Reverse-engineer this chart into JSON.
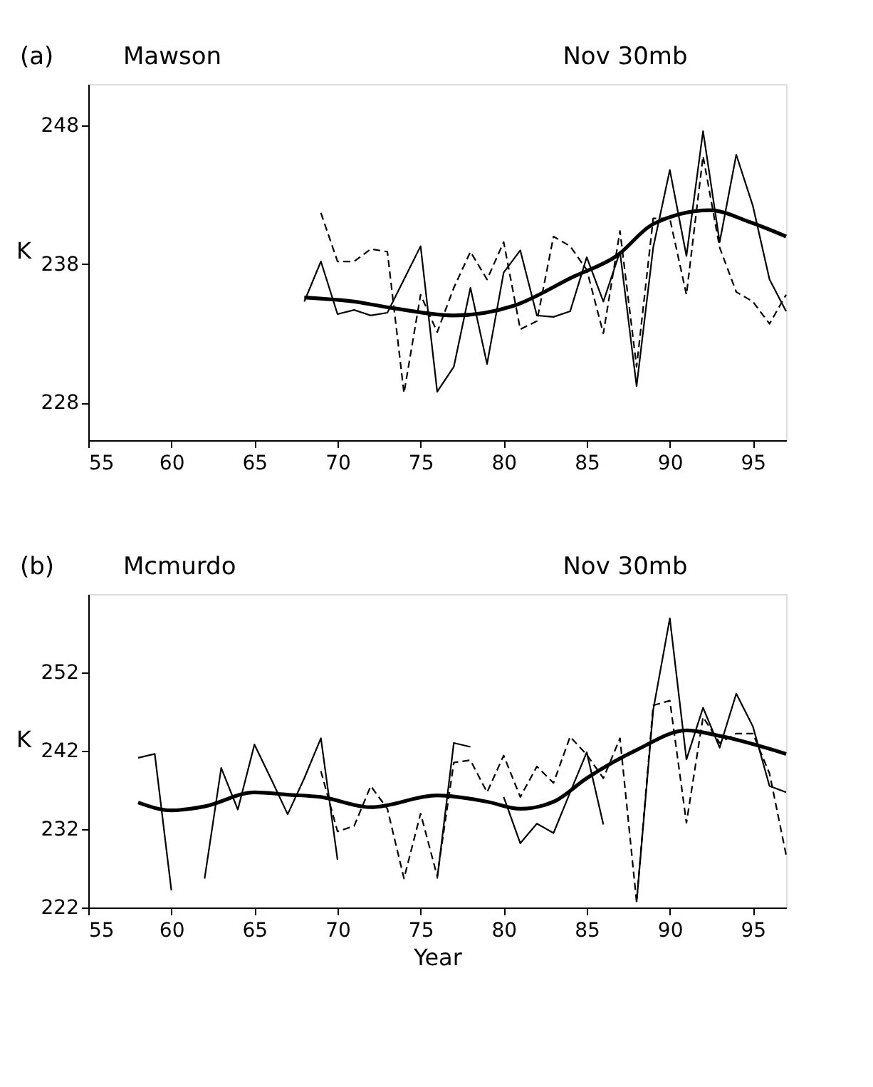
{
  "chart_data": [
    {
      "type": "line",
      "title": "Mawson",
      "subtitle": "Nov  30mb",
      "annotations": [
        "(a)"
      ],
      "ylabel": "K",
      "x": [
        68,
        69,
        70,
        71,
        72,
        73,
        74,
        75,
        76,
        77,
        78,
        79,
        80,
        81,
        82,
        83,
        84,
        85,
        86,
        87,
        88,
        89,
        90,
        91,
        92,
        93,
        94,
        95,
        96,
        97
      ],
      "series": [
        {
          "color": "#000000",
          "line_style": "solid",
          "values": [
            235.3,
            238.2,
            234.4,
            234.7,
            234.3,
            234.5,
            236.9,
            239.3,
            228.8,
            230.6,
            236.3,
            230.8,
            237.4,
            239.0,
            234.3,
            234.2,
            234.6,
            238.5,
            235.3,
            238.9,
            229.2,
            239.2,
            244.8,
            238.6,
            247.6,
            239.6,
            245.9,
            242.2,
            236.9,
            234.6
          ]
        },
        {
          "color": "#000000",
          "line_style": "dashed",
          "values": [
            null,
            241.7,
            238.2,
            238.2,
            239.1,
            238.9,
            228.7,
            235.8,
            233.1,
            236.3,
            238.9,
            236.9,
            239.6,
            233.3,
            233.9,
            240.0,
            239.3,
            237.6,
            233.0,
            240.4,
            230.6,
            241.3,
            241.3,
            235.8,
            245.8,
            239.2,
            236.0,
            235.3,
            233.7,
            235.8
          ]
        },
        {
          "color": "#000000",
          "line_style": "solid",
          "x": [
            68,
            71,
            73.5,
            77,
            80.6,
            84.2,
            86.8,
            89,
            92.4,
            94.9,
            97
          ],
          "values": [
            235.6,
            235.3,
            234.8,
            234.3,
            235.0,
            237.1,
            238.6,
            240.9,
            241.9,
            241.0,
            240.0
          ]
        }
      ],
      "xlim": [
        55,
        97
      ],
      "xticks": [
        55,
        60,
        65,
        70,
        75,
        80,
        85,
        90,
        95
      ],
      "ylim": [
        225.3,
        251
      ],
      "yticks": [
        228,
        238,
        248
      ],
      "grid": false,
      "marker": "none"
    },
    {
      "type": "line",
      "title": "Mcmurdo",
      "subtitle": "Nov  30mb",
      "annotations": [
        "(b)"
      ],
      "ylabel": "K",
      "xlabel": "Year",
      "x": [
        58,
        59,
        60,
        61,
        62,
        63,
        64,
        65,
        66,
        67,
        68,
        69,
        70,
        71,
        72,
        73,
        74,
        75,
        76,
        77,
        78,
        79,
        80,
        81,
        82,
        83,
        84,
        85,
        86,
        87,
        88,
        89,
        90,
        91,
        92,
        93,
        94,
        95,
        96,
        97
      ],
      "series": [
        {
          "color": "#000000",
          "line_style": "solid",
          "values": [
            241.1,
            241.6,
            224.2,
            null,
            225.7,
            239.8,
            234.5,
            242.8,
            238.4,
            233.9,
            238.5,
            243.6,
            228.1,
            null,
            null,
            null,
            null,
            null,
            225.7,
            243.0,
            242.5,
            null,
            236.1,
            230.2,
            232.7,
            231.5,
            236.7,
            241.8,
            232.6,
            null,
            222.7,
            247.2,
            258.9,
            240.9,
            247.5,
            242.4,
            249.3,
            245.1,
            237.5,
            236.7
          ]
        },
        {
          "color": "#000000",
          "line_style": "dashed",
          "values": [
            null,
            null,
            null,
            null,
            null,
            null,
            null,
            null,
            null,
            null,
            null,
            239.4,
            231.7,
            232.4,
            237.5,
            234.6,
            225.7,
            234.0,
            226.0,
            240.5,
            240.8,
            236.7,
            241.4,
            236.1,
            240.0,
            237.9,
            243.8,
            241.5,
            238.5,
            243.6,
            222.7,
            247.8,
            248.4,
            232.8,
            246.3,
            243.0,
            244.2,
            244.2,
            239.1,
            228.7
          ]
        },
        {
          "color": "#000000",
          "line_style": "solid",
          "x": [
            58,
            60,
            62,
            65,
            67,
            69,
            72,
            76,
            79,
            81,
            83,
            85,
            88,
            91,
            93,
            97
          ],
          "values": [
            235.4,
            234.4,
            234.9,
            236.7,
            236.4,
            236.1,
            234.8,
            236.3,
            235.5,
            234.6,
            235.5,
            238.5,
            242.1,
            244.6,
            243.9,
            241.6
          ]
        }
      ],
      "xlim": [
        55,
        97
      ],
      "xticks": [
        55,
        60,
        65,
        70,
        75,
        80,
        85,
        90,
        95
      ],
      "ylim": [
        222,
        262
      ],
      "yticks": [
        222,
        232,
        242,
        252
      ],
      "grid": false,
      "marker": "none"
    }
  ]
}
